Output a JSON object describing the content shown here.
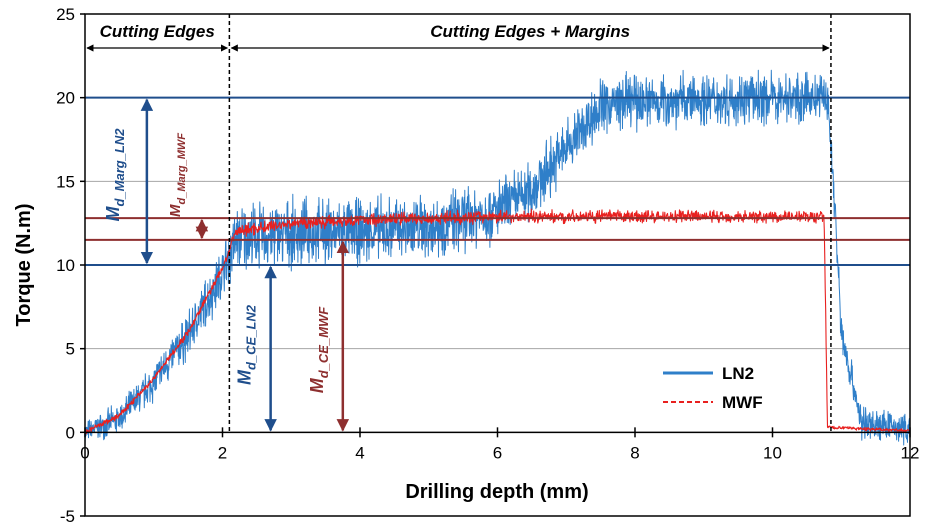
{
  "chart_data": {
    "type": "line",
    "xlabel": "Drilling depth (mm)",
    "ylabel": "Torque (N.m)",
    "xlim": [
      0,
      12
    ],
    "ylim": [
      -5,
      25
    ],
    "x_ticks": [
      0,
      2,
      4,
      6,
      8,
      10,
      12
    ],
    "y_ticks": [
      -5,
      0,
      5,
      10,
      15,
      20,
      25
    ],
    "grid": "horizontal",
    "legend_position": "bottom-right",
    "series": [
      {
        "name": "LN2",
        "color": "#2f7fc9",
        "style": "solid",
        "points": [
          {
            "x": 0,
            "y": 0
          },
          {
            "x": 0.5,
            "y": 0.8
          },
          {
            "x": 1.0,
            "y": 3.0
          },
          {
            "x": 1.5,
            "y": 5.8
          },
          {
            "x": 2.0,
            "y": 9.5
          },
          {
            "x": 2.2,
            "y": 11.6
          },
          {
            "x": 3,
            "y": 11.9
          },
          {
            "x": 4,
            "y": 12.0
          },
          {
            "x": 5,
            "y": 12.3
          },
          {
            "x": 6,
            "y": 13.2
          },
          {
            "x": 6.5,
            "y": 14.5
          },
          {
            "x": 7,
            "y": 17.0
          },
          {
            "x": 7.5,
            "y": 19.5
          },
          {
            "x": 8,
            "y": 19.8
          },
          {
            "x": 9,
            "y": 19.9
          },
          {
            "x": 10,
            "y": 20.0
          },
          {
            "x": 10.8,
            "y": 20.0
          },
          {
            "x": 10.9,
            "y": 14.0
          },
          {
            "x": 11.0,
            "y": 6.0
          },
          {
            "x": 11.3,
            "y": 0.5
          },
          {
            "x": 12,
            "y": 0.2
          }
        ],
        "noise_amplitude": [
          {
            "x": 0,
            "a": 0.6
          },
          {
            "x": 2,
            "a": 1.5
          },
          {
            "x": 2.2,
            "a": 1.8
          },
          {
            "x": 5,
            "a": 1.8
          },
          {
            "x": 7,
            "a": 1.6
          },
          {
            "x": 10.8,
            "a": 1.3
          },
          {
            "x": 11.2,
            "a": 1.0
          },
          {
            "x": 12,
            "a": 0.8
          }
        ]
      },
      {
        "name": "MWF",
        "color": "#e8201f",
        "style": "dashed",
        "points": [
          {
            "x": 0,
            "y": 0
          },
          {
            "x": 0.5,
            "y": 1.0
          },
          {
            "x": 1.0,
            "y": 3.2
          },
          {
            "x": 1.5,
            "y": 6.0
          },
          {
            "x": 2.0,
            "y": 9.8
          },
          {
            "x": 2.2,
            "y": 12.0
          },
          {
            "x": 3,
            "y": 12.5
          },
          {
            "x": 4,
            "y": 12.7
          },
          {
            "x": 6,
            "y": 12.9
          },
          {
            "x": 8,
            "y": 12.9
          },
          {
            "x": 10,
            "y": 12.9
          },
          {
            "x": 10.75,
            "y": 12.9
          },
          {
            "x": 10.8,
            "y": 0.3
          },
          {
            "x": 12,
            "y": 0.1
          }
        ],
        "noise_amplitude": [
          {
            "x": 0,
            "a": 0.15
          },
          {
            "x": 2,
            "a": 0.2
          },
          {
            "x": 2.2,
            "a": 0.35
          },
          {
            "x": 10.75,
            "a": 0.35
          },
          {
            "x": 10.8,
            "a": 0.1
          },
          {
            "x": 12,
            "a": 0.08
          }
        ]
      }
    ],
    "reference_lines": [
      {
        "y": 20,
        "color": "#1f4e8c"
      },
      {
        "y": 12.8,
        "color": "#8e2f2f"
      },
      {
        "y": 11.5,
        "color": "#8e2f2f"
      },
      {
        "y": 10,
        "color": "#1f4e8c"
      }
    ],
    "vertical_dividers": [
      2.1,
      10.85
    ],
    "regions": [
      {
        "label": "Cutting Edges",
        "from": 0,
        "to": 2.1
      },
      {
        "label": "Cutting Edges + Margins",
        "from": 2.1,
        "to": 10.85
      }
    ],
    "annotations": [
      {
        "main": "M",
        "sub": "d_Marg_LN2",
        "color": "#1f4e8c",
        "arrow_x": 0.9,
        "from_y": 20,
        "to_y": 10
      },
      {
        "main": "M",
        "sub": "d_Marg_MWF",
        "color": "#8e2f2f",
        "arrow_x": 1.7,
        "from_y": 12.8,
        "to_y": 11.5
      },
      {
        "main": "M",
        "sub": "d_CE_LN2",
        "color": "#1f4e8c",
        "arrow_x": 2.7,
        "from_y": 10,
        "to_y": 0
      },
      {
        "main": "M",
        "sub": "d_CE_MWF",
        "color": "#8e2f2f",
        "arrow_x": 3.75,
        "from_y": 11.5,
        "to_y": 0
      }
    ]
  }
}
